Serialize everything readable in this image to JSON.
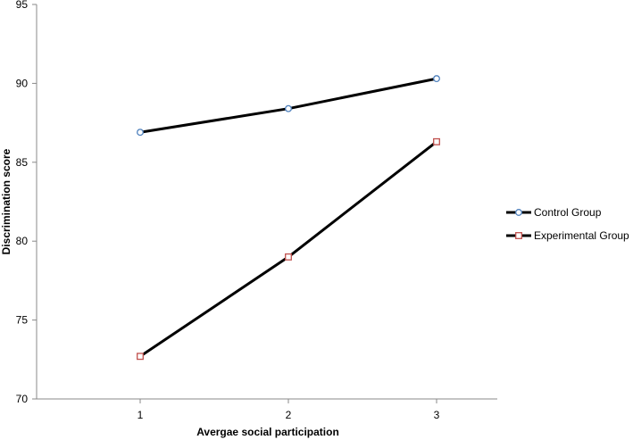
{
  "chart_data": {
    "type": "line",
    "title": "",
    "xlabel": "Avergae social participation",
    "ylabel": "Discrimination score",
    "x": [
      1,
      2,
      3
    ],
    "x_tick_labels": [
      "1",
      "2",
      "3"
    ],
    "ylim": [
      70,
      95
    ],
    "y_ticks": [
      70,
      75,
      80,
      85,
      90,
      95
    ],
    "y_tick_labels": [
      "70",
      "75",
      "80",
      "85",
      "90",
      "95"
    ],
    "grid": false,
    "legend_position": "right",
    "series": [
      {
        "name": "Control Group",
        "values": [
          86.9,
          88.4,
          90.3
        ],
        "line_color": "#000000",
        "marker": "circle",
        "marker_color": "#4f81bd"
      },
      {
        "name": "Experimental Group",
        "values": [
          72.7,
          79.0,
          86.3
        ],
        "line_color": "#000000",
        "marker": "square",
        "marker_color": "#c0504d"
      }
    ]
  }
}
